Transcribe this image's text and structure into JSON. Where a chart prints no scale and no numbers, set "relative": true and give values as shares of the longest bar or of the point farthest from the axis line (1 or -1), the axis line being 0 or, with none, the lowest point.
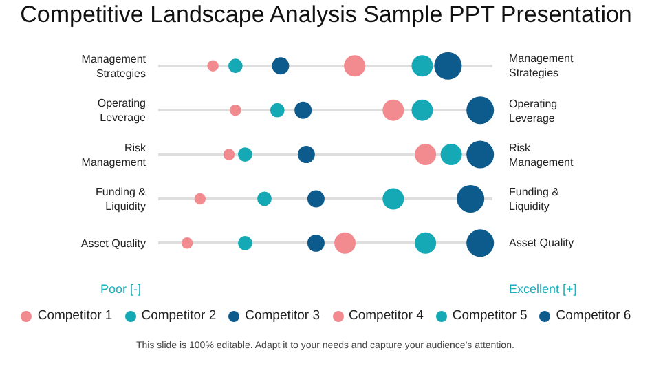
{
  "chart_data": {
    "type": "bubble",
    "title": "Competitive Landscape Analysis Sample PPT Presentation",
    "relative": true,
    "grid": "y",
    "orientation": "horizontal",
    "legend": "bottom",
    "categories": [
      "Management Strategies",
      "Operating Leverage",
      "Risk Management",
      "Funding & Liquidity",
      "Asset Quality"
    ],
    "series": [
      {
        "name": "Competitor 1",
        "color": "#f28b8f",
        "values": [
          0.17,
          0.24,
          0.22,
          0.13,
          0.09
        ],
        "sizes": [
          0.17,
          0.17,
          0.17,
          0.17,
          0.17
        ]
      },
      {
        "name": "Competitor 2",
        "color": "#14a9b5",
        "values": [
          0.24,
          0.37,
          0.27,
          0.33,
          0.27
        ],
        "sizes": [
          0.27,
          0.27,
          0.27,
          0.27,
          0.27
        ]
      },
      {
        "name": "Competitor 3",
        "color": "#0d5a8c",
        "values": [
          0.38,
          0.45,
          0.46,
          0.49,
          0.49
        ],
        "sizes": [
          0.39,
          0.39,
          0.39,
          0.39,
          0.39
        ]
      },
      {
        "name": "Competitor 4",
        "color": "#f28b8f",
        "values": [
          0.61,
          0.73,
          0.83,
          null,
          0.58
        ],
        "sizes": [
          0.6,
          0.6,
          0.6,
          null,
          0.6
        ]
      },
      {
        "name": "Competitor 5",
        "color": "#14a9b5",
        "values": [
          0.82,
          0.82,
          0.91,
          0.73,
          0.83
        ],
        "sizes": [
          0.6,
          0.6,
          0.6,
          0.6,
          0.6
        ]
      },
      {
        "name": "Competitor 6",
        "color": "#0d5a8c",
        "values": [
          0.9,
          1.0,
          1.0,
          0.97,
          1.0
        ],
        "sizes": [
          1,
          1,
          1,
          1,
          1
        ]
      }
    ],
    "annotations": [
      "Poor [-]",
      "Excellent [+]",
      "This slide is 100% editable. Adapt it to your needs and capture your audience's attention."
    ]
  }
}
